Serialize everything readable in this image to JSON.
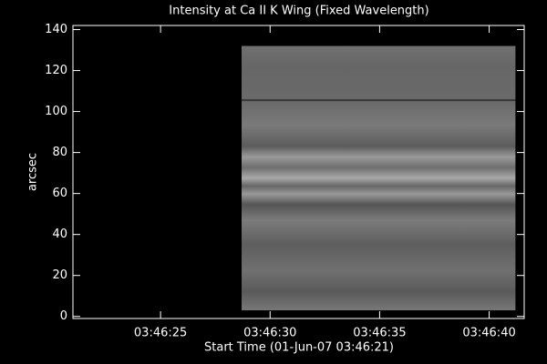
{
  "chart_data": {
    "type": "image",
    "title": "Intensity at Ca II K Wing (Fixed Wavelength)",
    "x_label": "Start Time (01-Jun-07 03:46:21)",
    "y_label": "arcsec",
    "xlim": [
      0,
      20.6
    ],
    "ylim": [
      -1,
      142
    ],
    "xticks": [
      {
        "value": 4,
        "label": "03:46:25"
      },
      {
        "value": 9,
        "label": "03:46:30"
      },
      {
        "value": 14,
        "label": "03:46:35"
      },
      {
        "value": 19,
        "label": "03:46:40"
      }
    ],
    "yticks": [
      0,
      20,
      40,
      60,
      80,
      100,
      120,
      140
    ],
    "image_extent": {
      "x": [
        7.7,
        20.2
      ],
      "y": [
        3,
        132
      ]
    },
    "background": "#000000",
    "axis_color": "#ffffff"
  }
}
